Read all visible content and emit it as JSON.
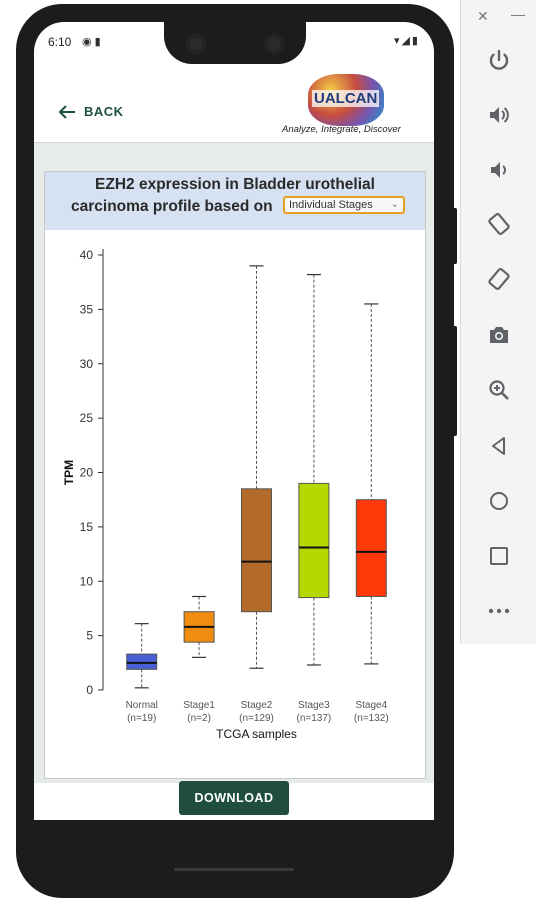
{
  "status_bar": {
    "time": "6:10",
    "left_icons": "◉ ▮",
    "right_icons": "▾◢▮"
  },
  "app_bar": {
    "back_label": "BACK",
    "logo_text": "UALCAN",
    "logo_tagline": "Analyze, Integrate, Discover"
  },
  "card": {
    "title_line1": "EZH2 expression in Bladder urothelial",
    "title_line2": "carcinoma profile based on",
    "select_value": "Individual Stages"
  },
  "download_label": "DOWNLOAD",
  "toolbar_icons": [
    "power-icon",
    "volume-up-icon",
    "volume-down-icon",
    "rotate-left-icon",
    "rotate-right-icon",
    "camera-icon",
    "zoom-icon",
    "back-icon",
    "home-icon",
    "overview-icon",
    "more-icon"
  ],
  "chart_data": {
    "type": "boxplot",
    "xlabel": "TCGA samples",
    "ylabel": "TPM",
    "ylim": [
      0,
      40
    ],
    "yticks": [
      0,
      5,
      10,
      15,
      20,
      25,
      30,
      35,
      40
    ],
    "categories": [
      "Normal",
      "Stage1",
      "Stage2",
      "Stage3",
      "Stage4"
    ],
    "sample_sizes": [
      "(n=19)",
      "(n=2)",
      "(n=129)",
      "(n=137)",
      "(n=132)"
    ],
    "colors": [
      "#4a5fd6",
      "#f08c10",
      "#b26b2a",
      "#b5d800",
      "#ff3a0a"
    ],
    "boxes": [
      {
        "min": 0.2,
        "q1": 1.9,
        "median": 2.5,
        "q3": 3.3,
        "max": 6.1
      },
      {
        "min": 3.0,
        "q1": 4.4,
        "median": 5.8,
        "q3": 7.2,
        "max": 8.6
      },
      {
        "min": 2.0,
        "q1": 7.2,
        "median": 11.8,
        "q3": 18.5,
        "max": 39.0
      },
      {
        "min": 2.3,
        "q1": 8.5,
        "median": 13.1,
        "q3": 19.0,
        "max": 38.2
      },
      {
        "min": 2.4,
        "q1": 8.6,
        "median": 12.7,
        "q3": 17.5,
        "max": 35.5
      }
    ]
  }
}
